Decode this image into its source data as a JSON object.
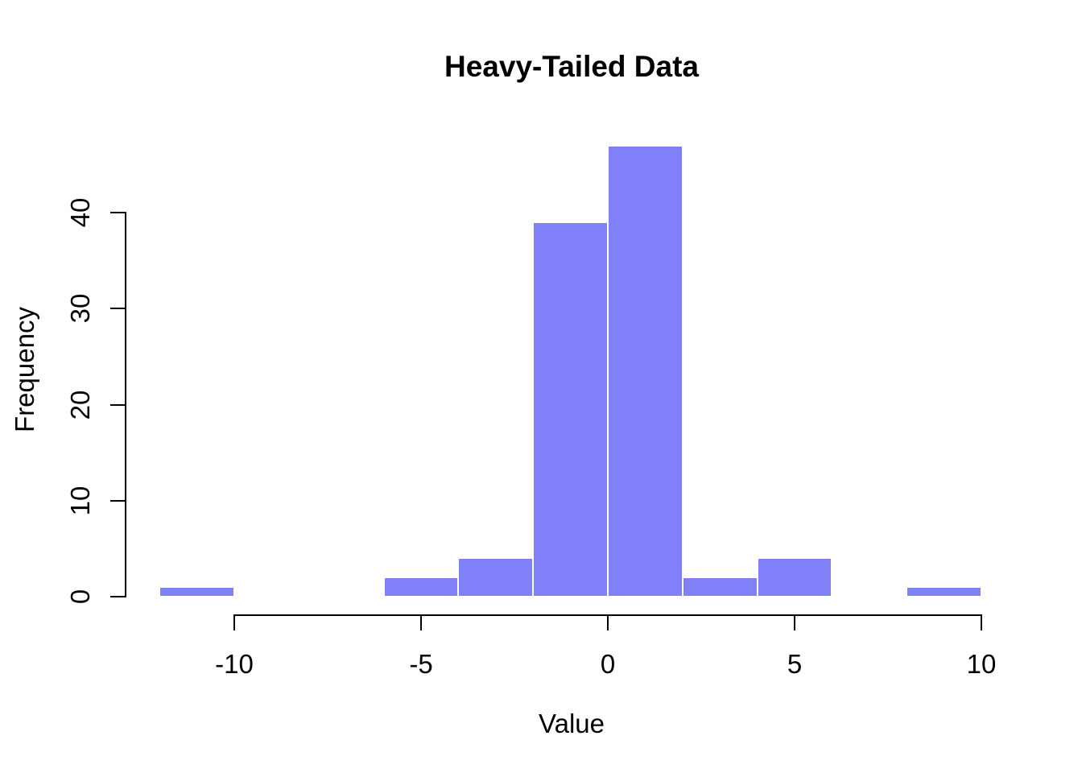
{
  "title": "Heavy-Tailed Data",
  "xlabel": "Value",
  "ylabel": "Frequency",
  "chart_data": {
    "type": "bar",
    "subtype": "histogram",
    "title": "Heavy-Tailed Data",
    "xlabel": "Value",
    "ylabel": "Frequency",
    "bin_breaks": [
      -12,
      -10,
      -8,
      -6,
      -4,
      -2,
      0,
      2,
      4,
      6,
      8,
      10
    ],
    "counts": [
      1,
      0,
      0,
      2,
      4,
      39,
      47,
      2,
      4,
      0,
      1
    ],
    "x_ticks": [
      -10,
      -5,
      0,
      5,
      10
    ],
    "x_tick_labels": [
      "-10",
      "-5",
      "0",
      "5",
      "10"
    ],
    "y_ticks": [
      0,
      10,
      20,
      30,
      40
    ],
    "y_tick_labels": [
      "0",
      "10",
      "20",
      "30",
      "40"
    ],
    "xlim": [
      -12,
      10
    ],
    "ylim": [
      0,
      47
    ],
    "grid": false,
    "legend": null,
    "bar_fill": "#8080F8",
    "bar_border": "#FFFFFF",
    "axis_color": "#000000",
    "text_color": "#000000",
    "background": "#FFFFFF"
  }
}
